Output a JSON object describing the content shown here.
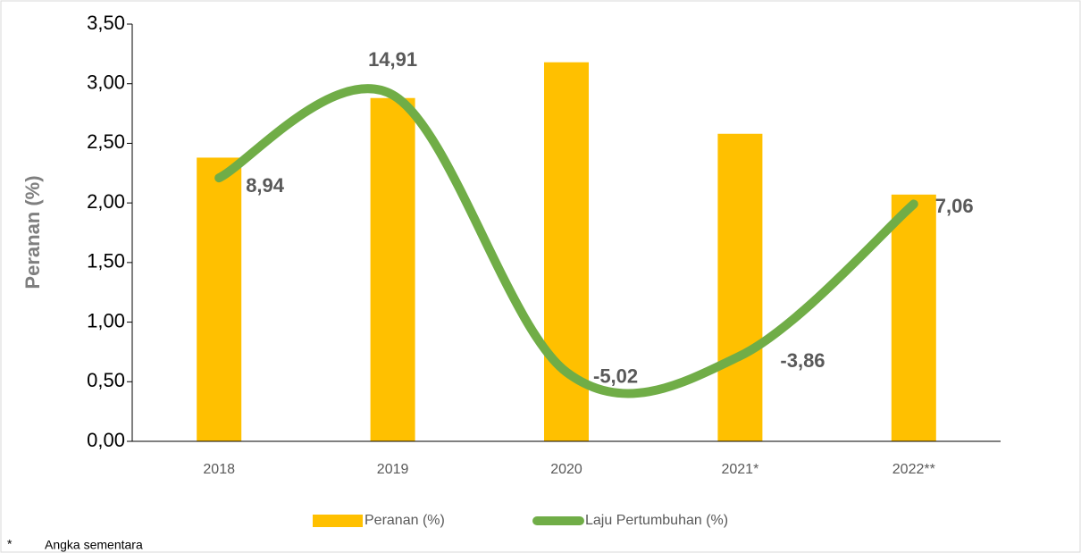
{
  "chart_data": {
    "type": "bar_line",
    "y_axis_label": "Peranan (%)",
    "categories": [
      "2018",
      "2019",
      "2020",
      "2021*",
      "2022**"
    ],
    "series": [
      {
        "name": "Peranan (%)",
        "color": "#ffc000",
        "type": "bar",
        "values": [
          2.38,
          2.88,
          3.18,
          2.58,
          2.07
        ]
      },
      {
        "name": "Laju Pertumbuhan (%)",
        "color": "#70ad47",
        "type": "line",
        "axis": "y2",
        "values": [
          8.94,
          14.91,
          -5.02,
          -3.86,
          7.06
        ],
        "value_labels": [
          "8,94",
          "14,91",
          "-5,02",
          "-3,86",
          "7,06"
        ]
      }
    ],
    "ylim": [
      0,
      3.5
    ],
    "yticks": [
      {
        "value": 0,
        "label": "0,00"
      },
      {
        "value": 0.5,
        "label": "0,50"
      },
      {
        "value": 1,
        "label": "1,00"
      },
      {
        "value": 1.5,
        "label": "1,50"
      },
      {
        "value": 2,
        "label": "2,00"
      },
      {
        "value": 2.5,
        "label": "2,50"
      },
      {
        "value": 3,
        "label": "3,00"
      },
      {
        "value": 3.5,
        "label": "3,50"
      }
    ],
    "y2lim": [
      -10,
      20
    ],
    "legend": "bottom",
    "footnote": "Angka sementara",
    "footnote_marker": "*"
  }
}
